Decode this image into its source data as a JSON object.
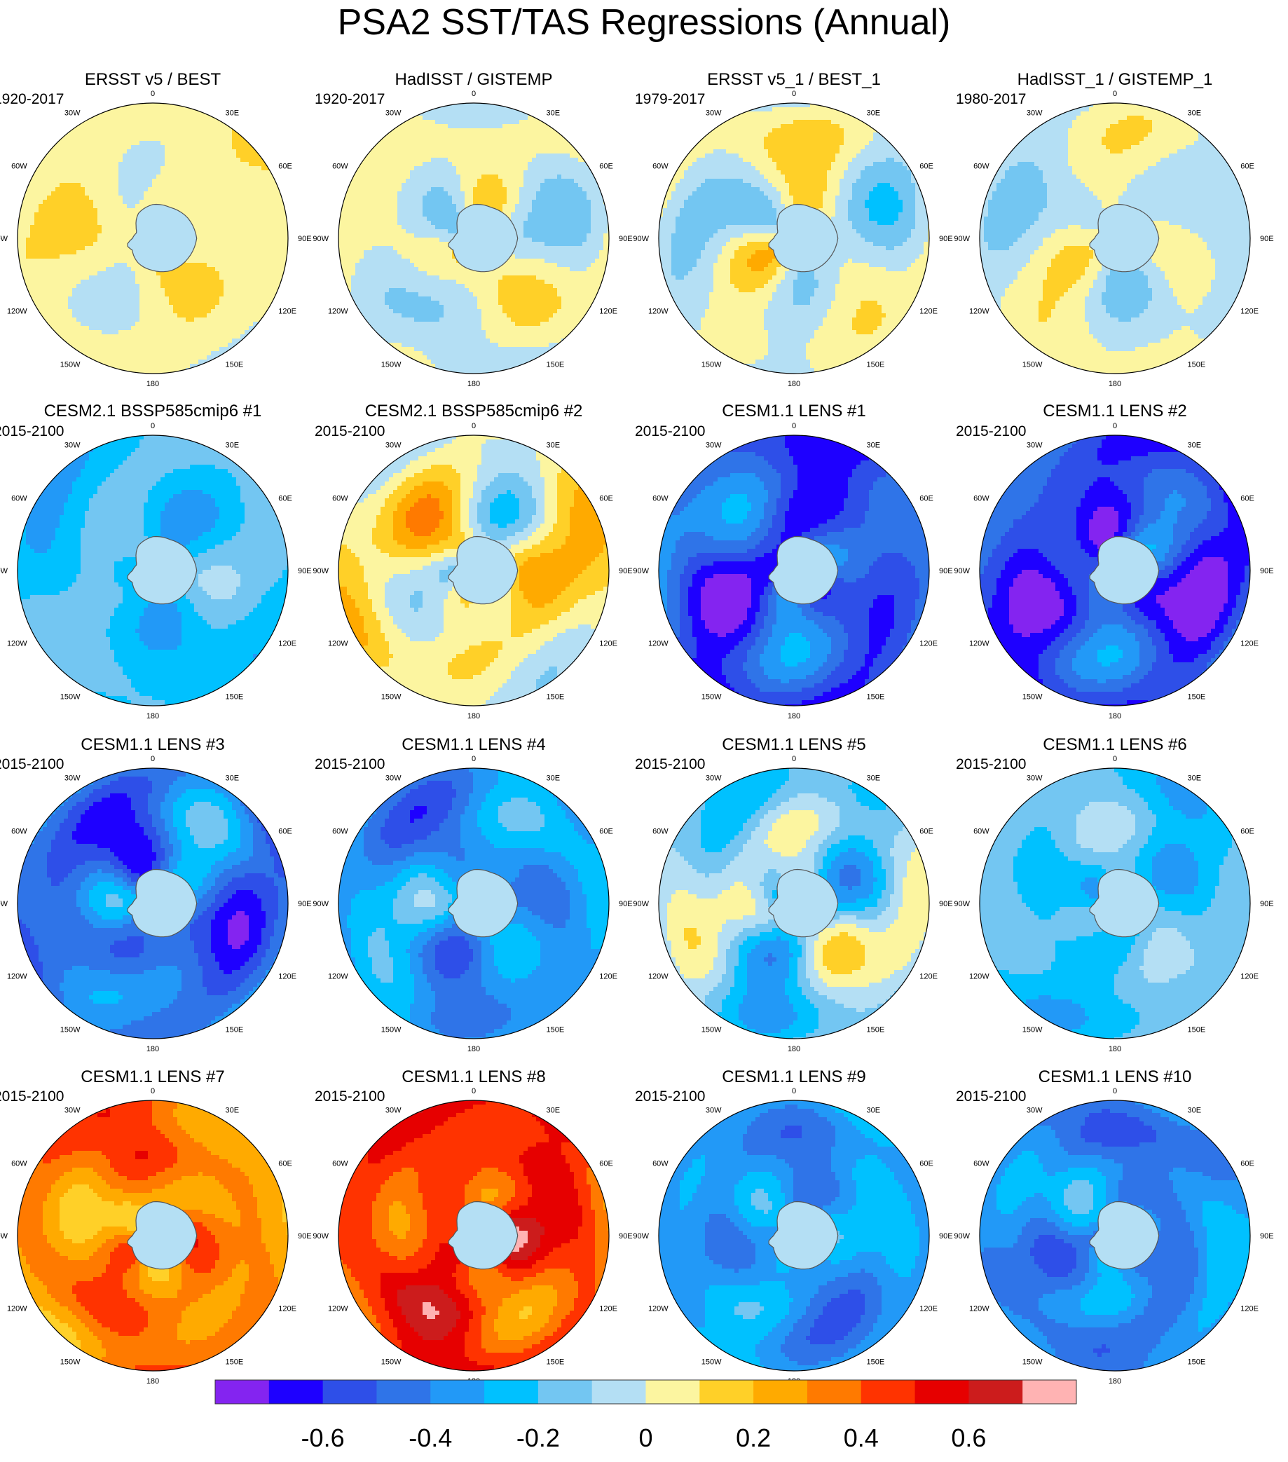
{
  "title": "PSA2 SST/TAS Regressions (Annual)",
  "chart_data": {
    "type": "heatmap",
    "projection": "south polar stereographic",
    "title": "PSA2 SST/TAS Regressions (Annual)",
    "longitude_labels": [
      "0",
      "30E",
      "60E",
      "90E",
      "120E",
      "150E",
      "180",
      "150W",
      "120W",
      "90W",
      "60W",
      "30W"
    ],
    "colorbar": {
      "placement": "bottom",
      "tick_labels": [
        "-0.6",
        "-0.4",
        "-0.2",
        "0",
        "0.2",
        "0.4",
        "0.6"
      ],
      "tick_values": [
        -0.6,
        -0.4,
        -0.2,
        0,
        0.2,
        0.4,
        0.6
      ],
      "levels": [
        -0.7,
        -0.6,
        -0.5,
        -0.4,
        -0.3,
        -0.2,
        -0.1,
        0,
        0.1,
        0.2,
        0.3,
        0.4,
        0.5,
        0.6,
        0.7
      ],
      "colors": [
        "#8424f0",
        "#1e00ff",
        "#2e4fe8",
        "#2f74e8",
        "#2299f7",
        "#00c1ff",
        "#73c6f2",
        "#b4dff4",
        "#fcf5a0",
        "#ffd028",
        "#ffaa00",
        "#ff7a00",
        "#ff3300",
        "#e60000",
        "#cc1c1c",
        "#ffb3b3"
      ]
    },
    "land_color": "#d9d9d9",
    "panels": [
      {
        "title": "ERSST v5 / BEST",
        "period": "1920-2017",
        "base": 0.05,
        "amp": 0.06
      },
      {
        "title": "HadISST / GISTEMP",
        "period": "1920-2017",
        "base": 0.0,
        "amp": 0.12
      },
      {
        "title": "ERSST v5_1 / BEST_1",
        "period": "1979-2017",
        "base": 0.0,
        "amp": 0.12
      },
      {
        "title": "HadISST_1 / GISTEMP_1",
        "period": "1980-2017",
        "base": -0.01,
        "amp": 0.08
      },
      {
        "title": "CESM2.1 BSSP585cmip6 #1",
        "period": "2015-2100",
        "base": -0.22,
        "amp": 0.08
      },
      {
        "title": "CESM2.1 BSSP585cmip6 #2",
        "period": "2015-2100",
        "base": 0.06,
        "amp": 0.14
      },
      {
        "title": "CESM1.1 LENS #1",
        "period": "2015-2100",
        "base": -0.52,
        "amp": 0.14
      },
      {
        "title": "CESM1.1 LENS #2",
        "period": "2015-2100",
        "base": -0.56,
        "amp": 0.14
      },
      {
        "title": "CESM1.1 LENS #3",
        "period": "2015-2100",
        "base": -0.44,
        "amp": 0.16
      },
      {
        "title": "CESM1.1 LENS #4",
        "period": "2015-2100",
        "base": -0.34,
        "amp": 0.14
      },
      {
        "title": "CESM1.1 LENS #5",
        "period": "2015-2100",
        "base": -0.12,
        "amp": 0.16
      },
      {
        "title": "CESM1.1 LENS #6",
        "period": "2015-2100",
        "base": -0.2,
        "amp": 0.1
      },
      {
        "title": "CESM1.1 LENS #7",
        "period": "2015-2100",
        "base": 0.32,
        "amp": 0.14
      },
      {
        "title": "CESM1.1 LENS #8",
        "period": "2015-2100",
        "base": 0.46,
        "amp": 0.14
      },
      {
        "title": "CESM1.1 LENS #9",
        "period": "2015-2100",
        "base": -0.34,
        "amp": 0.12
      },
      {
        "title": "CESM1.1 LENS #10",
        "period": "2015-2100",
        "base": -0.38,
        "amp": 0.14
      }
    ]
  }
}
